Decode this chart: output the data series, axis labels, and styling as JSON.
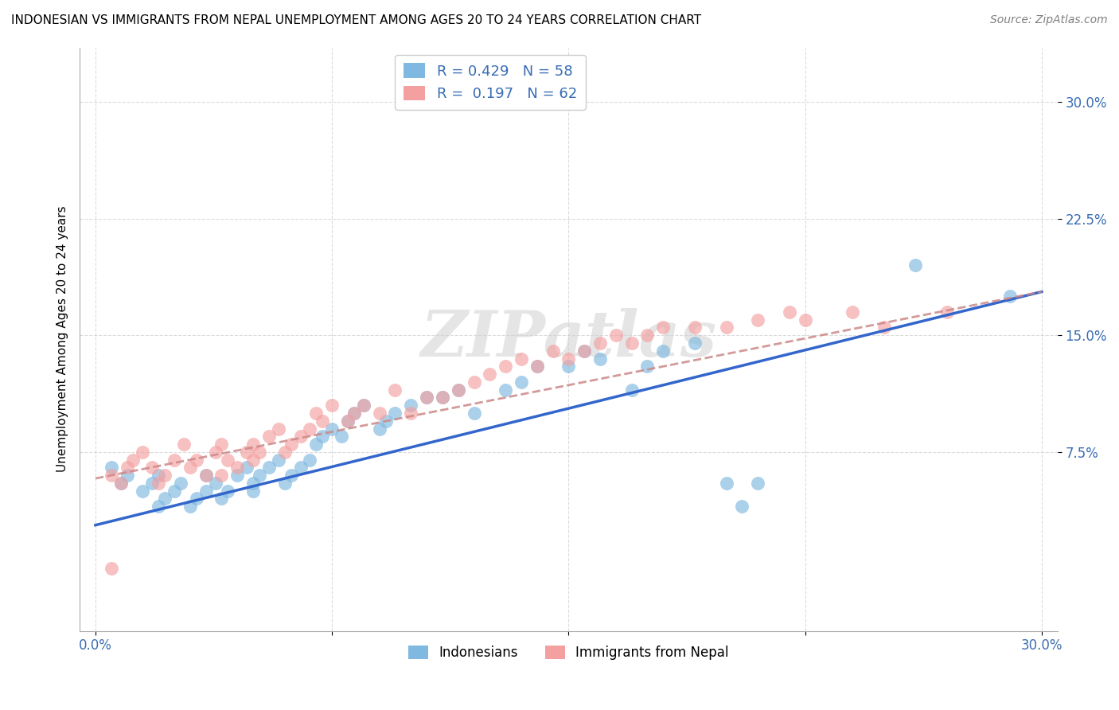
{
  "title": "INDONESIAN VS IMMIGRANTS FROM NEPAL UNEMPLOYMENT AMONG AGES 20 TO 24 YEARS CORRELATION CHART",
  "source": "Source: ZipAtlas.com",
  "ylabel": "Unemployment Among Ages 20 to 24 years",
  "xlim": [
    -0.005,
    0.305
  ],
  "ylim": [
    -0.04,
    0.335
  ],
  "xticks": [
    0.0,
    0.075,
    0.15,
    0.225,
    0.3
  ],
  "yticks": [
    0.075,
    0.15,
    0.225,
    0.3
  ],
  "xticklabels": [
    "0.0%",
    "",
    "",
    "",
    "30.0%"
  ],
  "yticklabels": [
    "7.5%",
    "15.0%",
    "22.5%",
    "30.0%"
  ],
  "R_blue": 0.429,
  "N_blue": 58,
  "R_pink": 0.197,
  "N_pink": 62,
  "blue_color": "#7fb8e0",
  "pink_color": "#f4a0a0",
  "blue_line_color": "#3366cc",
  "pink_line_color": "#cc8888",
  "legend_label_blue": "Indonesians",
  "legend_label_pink": "Immigrants from Nepal",
  "watermark": "ZIPatlas",
  "blue_x": [
    0.005,
    0.008,
    0.01,
    0.015,
    0.018,
    0.02,
    0.02,
    0.022,
    0.025,
    0.027,
    0.03,
    0.032,
    0.035,
    0.035,
    0.038,
    0.04,
    0.042,
    0.045,
    0.048,
    0.05,
    0.05,
    0.052,
    0.055,
    0.058,
    0.06,
    0.062,
    0.065,
    0.068,
    0.07,
    0.072,
    0.075,
    0.078,
    0.08,
    0.082,
    0.085,
    0.09,
    0.092,
    0.095,
    0.1,
    0.105,
    0.11,
    0.115,
    0.12,
    0.13,
    0.135,
    0.14,
    0.15,
    0.155,
    0.16,
    0.17,
    0.175,
    0.18,
    0.19,
    0.2,
    0.205,
    0.21,
    0.26,
    0.29
  ],
  "blue_y": [
    0.065,
    0.055,
    0.06,
    0.05,
    0.055,
    0.04,
    0.06,
    0.045,
    0.05,
    0.055,
    0.04,
    0.045,
    0.05,
    0.06,
    0.055,
    0.045,
    0.05,
    0.06,
    0.065,
    0.05,
    0.055,
    0.06,
    0.065,
    0.07,
    0.055,
    0.06,
    0.065,
    0.07,
    0.08,
    0.085,
    0.09,
    0.085,
    0.095,
    0.1,
    0.105,
    0.09,
    0.095,
    0.1,
    0.105,
    0.11,
    0.11,
    0.115,
    0.1,
    0.115,
    0.12,
    0.13,
    0.13,
    0.14,
    0.135,
    0.115,
    0.13,
    0.14,
    0.145,
    0.055,
    0.04,
    0.055,
    0.195,
    0.175
  ],
  "pink_x": [
    0.005,
    0.008,
    0.01,
    0.012,
    0.015,
    0.018,
    0.02,
    0.022,
    0.025,
    0.028,
    0.03,
    0.032,
    0.035,
    0.038,
    0.04,
    0.04,
    0.042,
    0.045,
    0.048,
    0.05,
    0.05,
    0.052,
    0.055,
    0.058,
    0.06,
    0.062,
    0.065,
    0.068,
    0.07,
    0.072,
    0.075,
    0.08,
    0.082,
    0.085,
    0.09,
    0.095,
    0.1,
    0.105,
    0.11,
    0.115,
    0.12,
    0.125,
    0.13,
    0.135,
    0.14,
    0.145,
    0.15,
    0.155,
    0.16,
    0.165,
    0.17,
    0.175,
    0.18,
    0.19,
    0.2,
    0.21,
    0.22,
    0.225,
    0.24,
    0.25,
    0.005,
    0.27
  ],
  "pink_y": [
    0.06,
    0.055,
    0.065,
    0.07,
    0.075,
    0.065,
    0.055,
    0.06,
    0.07,
    0.08,
    0.065,
    0.07,
    0.06,
    0.075,
    0.06,
    0.08,
    0.07,
    0.065,
    0.075,
    0.07,
    0.08,
    0.075,
    0.085,
    0.09,
    0.075,
    0.08,
    0.085,
    0.09,
    0.1,
    0.095,
    0.105,
    0.095,
    0.1,
    0.105,
    0.1,
    0.115,
    0.1,
    0.11,
    0.11,
    0.115,
    0.12,
    0.125,
    0.13,
    0.135,
    0.13,
    0.14,
    0.135,
    0.14,
    0.145,
    0.15,
    0.145,
    0.15,
    0.155,
    0.155,
    0.155,
    0.16,
    0.165,
    0.16,
    0.165,
    0.155,
    0.0,
    0.165
  ]
}
